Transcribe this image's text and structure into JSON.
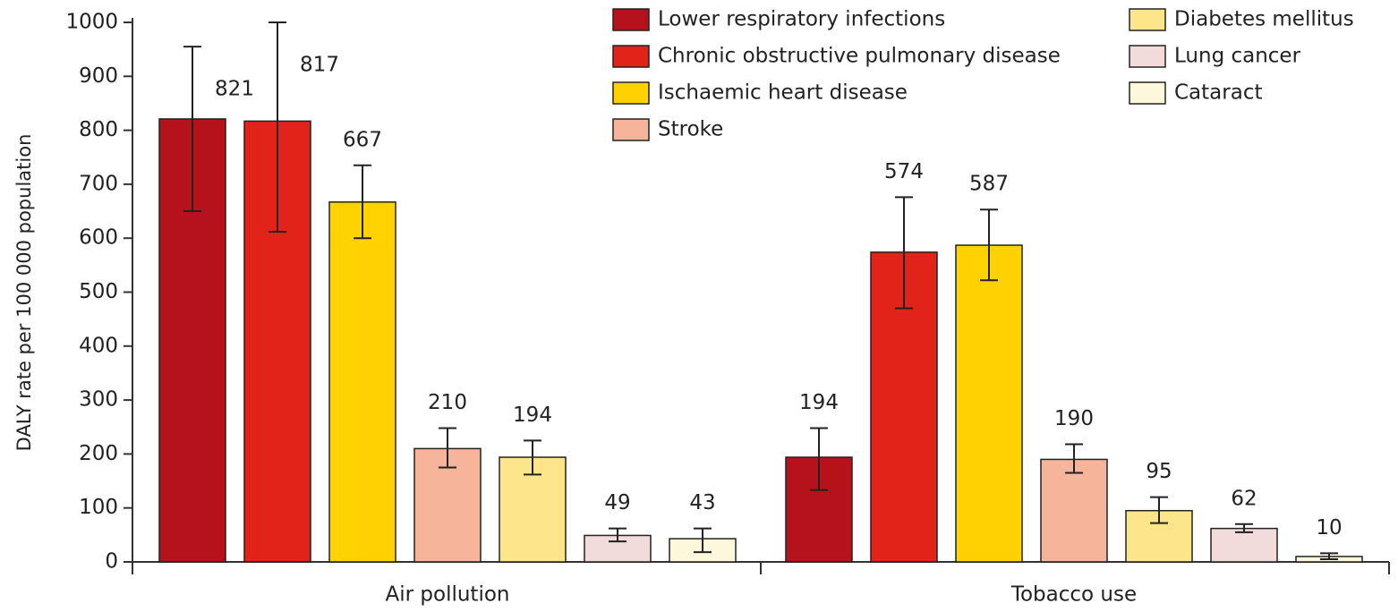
{
  "chart_data": {
    "type": "bar",
    "y_label": "DALY rate per 100 000 population",
    "categories": [
      "Air pollution",
      "Tobacco use"
    ],
    "ylim": [
      0,
      1000
    ],
    "yticks": [
      0,
      100,
      200,
      300,
      400,
      500,
      600,
      700,
      800,
      900,
      1000
    ],
    "series": [
      {
        "name": "Lower respiratory infections",
        "color": "#b5121b",
        "values": [
          821,
          194
        ],
        "lower": [
          650,
          133
        ],
        "upper": [
          955,
          248
        ]
      },
      {
        "name": "Chronic obstructive pulmonary disease",
        "color": "#e2231a",
        "values": [
          817,
          574
        ],
        "lower": [
          612,
          470
        ],
        "upper": [
          1000,
          676
        ]
      },
      {
        "name": "Ischaemic heart disease",
        "color": "#ffd200",
        "values": [
          667,
          587
        ],
        "lower": [
          600,
          522
        ],
        "upper": [
          735,
          653
        ]
      },
      {
        "name": "Stroke",
        "color": "#f6b49a",
        "values": [
          210,
          190
        ],
        "lower": [
          175,
          165
        ],
        "upper": [
          248,
          218
        ]
      },
      {
        "name": "Diabetes mellitus",
        "color": "#fde68a",
        "values": [
          194,
          95
        ],
        "lower": [
          162,
          72
        ],
        "upper": [
          225,
          120
        ]
      },
      {
        "name": "Lung cancer",
        "color": "#f2dcdb",
        "values": [
          49,
          62
        ],
        "lower": [
          38,
          55
        ],
        "upper": [
          62,
          70
        ]
      },
      {
        "name": "Cataract",
        "color": "#fdf8dc",
        "values": [
          43,
          10
        ],
        "lower": [
          18,
          5
        ],
        "upper": [
          62,
          16
        ]
      }
    ]
  }
}
